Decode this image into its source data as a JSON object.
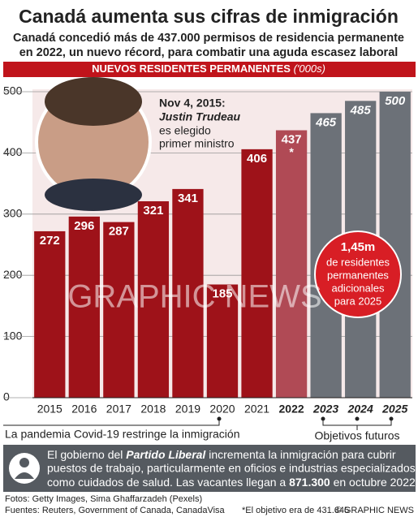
{
  "chart_data": {
    "type": "bar",
    "title": "Canadá aumenta sus cifras de inmigración",
    "subtitle": [
      "Canadá concedió más de 437.000 permisos de residencia permanente",
      "en 2022, un nuevo récord, para combatir una aguda escasez laboral"
    ],
    "banner": "NUEVOS RESIDENTES PERMANENTES",
    "unit": "('000s)",
    "categories": [
      "2015",
      "2016",
      "2017",
      "2018",
      "2019",
      "2020",
      "2021",
      "2022",
      "2023",
      "2024",
      "2025"
    ],
    "category_styles": [
      "normal",
      "normal",
      "normal",
      "normal",
      "normal",
      "normal",
      "normal",
      "bold",
      "bold-italic",
      "bold-italic",
      "bold-italic"
    ],
    "values": [
      272,
      296,
      287,
      321,
      341,
      185,
      406,
      437,
      465,
      485,
      500
    ],
    "colors": [
      "#9e1219",
      "#9e1219",
      "#9e1219",
      "#9e1219",
      "#9e1219",
      "#9e1219",
      "#9e1219",
      "#b04a55",
      "#6c7178",
      "#6c7178",
      "#6c7178"
    ],
    "value_note": "*",
    "ylim": [
      0,
      500
    ],
    "yticks": [
      0,
      100,
      200,
      300,
      400,
      500
    ],
    "grid": true,
    "annotation": {
      "date": "Nov 4, 2015:",
      "name": "Justin Trudeau",
      "lines": [
        "es elegido",
        "primer ministro"
      ]
    },
    "callout": {
      "value": "1,45m",
      "lines": [
        "de residentes",
        "permanentes",
        "adicionales",
        "para 2025"
      ]
    },
    "pandemic_note": "La pandemia Covid-19 restringe la inmigración",
    "future_note": "Objetivos futuros",
    "watermark": "GRAPHIC NEWS",
    "info": {
      "lead": "El gobierno del",
      "party": "Partido Liberal",
      "line1_rest": "incrementa la inmigración para cubrir",
      "line2": "puestos de trabajo, particularmente en oficios e industrias especializados",
      "line3_start": "como cuidados de salud. Las vacantes llegan a",
      "vacancies": "871.300",
      "line3_end": "en octubre 2022"
    },
    "footer": {
      "photos": "Fotos: Getty Images, Sima Ghaffarzadeh (Pexels)",
      "sources": "Fuentes: Reuters, Government of Canada, CanadaVisa",
      "target_note": "*El objetivo era de 431.645",
      "credit": "© GRAPHIC NEWS"
    }
  }
}
